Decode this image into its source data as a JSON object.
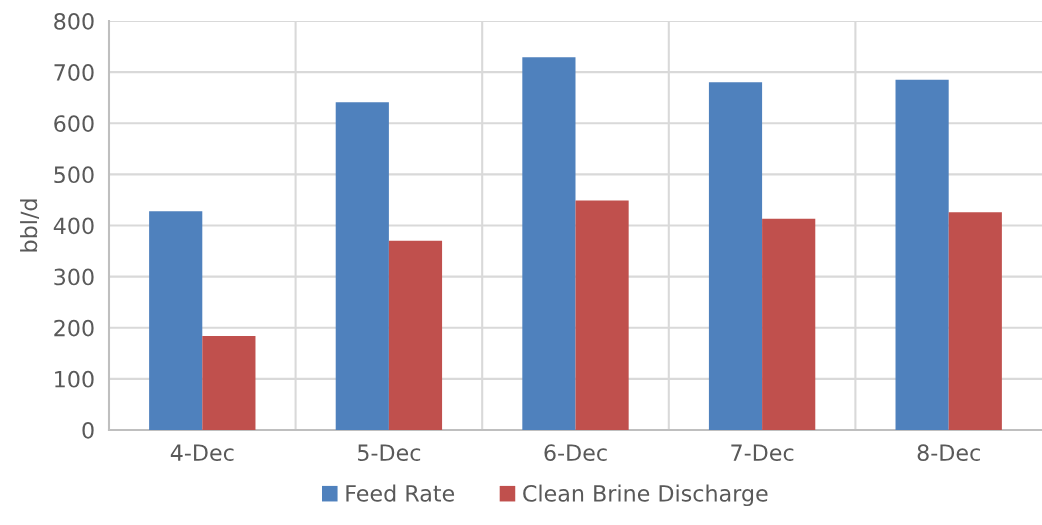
{
  "chart_data": {
    "type": "bar",
    "ylabel": "bbl/d",
    "categories": [
      "4-Dec",
      "5-Dec",
      "6-Dec",
      "7-Dec",
      "8-Dec"
    ],
    "series": [
      {
        "name": "Feed Rate",
        "color": "#4f81bd",
        "values": [
          428,
          641,
          729,
          680,
          685
        ]
      },
      {
        "name": "Clean Brine Discharge",
        "color": "#c0504d",
        "values": [
          184,
          370,
          449,
          413,
          426
        ]
      }
    ],
    "ylim": [
      0,
      800
    ],
    "yticks": [
      0,
      100,
      200,
      300,
      400,
      500,
      600,
      700,
      800
    ],
    "grid": true,
    "legend": "bottom"
  }
}
